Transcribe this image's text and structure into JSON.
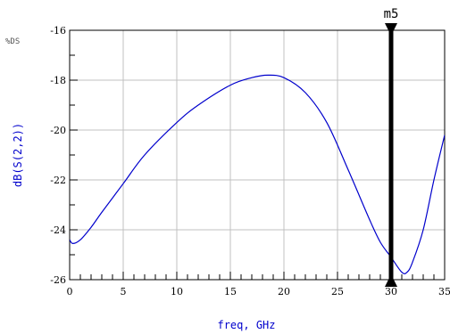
{
  "corner_label": "%DS",
  "chart_data": {
    "type": "line",
    "xlabel": "freq, GHz",
    "ylabel": "dB(S(2,2))",
    "xlim": [
      0,
      35
    ],
    "ylim": [
      -26,
      -16
    ],
    "x_major_ticks": [
      0,
      5,
      10,
      15,
      20,
      25,
      30,
      35
    ],
    "x_tick_labels": [
      "0",
      "5",
      "10",
      "15",
      "20",
      "25",
      "30",
      "35"
    ],
    "y_major_ticks": [
      -26,
      -24,
      -22,
      -20,
      -18,
      -16
    ],
    "y_tick_labels": [
      "-26",
      "-24",
      "-22",
      "-20",
      "-18",
      "-16"
    ],
    "grid": true,
    "colors": {
      "series": "#0000cc",
      "ylabel": "#0000cc",
      "xlabel": "#0000cc",
      "grid": "#c0c0c0",
      "marker": "#000000"
    },
    "series": [
      {
        "values": [
          {
            "x": 0,
            "y": -24.4
          },
          {
            "x": 0.3,
            "y": -24.55
          },
          {
            "x": 1,
            "y": -24.4
          },
          {
            "x": 2,
            "y": -23.9
          },
          {
            "x": 3,
            "y": -23.3
          },
          {
            "x": 5,
            "y": -22.15
          },
          {
            "x": 7,
            "y": -21.0
          },
          {
            "x": 10,
            "y": -19.7
          },
          {
            "x": 12,
            "y": -19.0
          },
          {
            "x": 15,
            "y": -18.2
          },
          {
            "x": 17,
            "y": -17.9
          },
          {
            "x": 18.5,
            "y": -17.8
          },
          {
            "x": 20,
            "y": -17.9
          },
          {
            "x": 22,
            "y": -18.5
          },
          {
            "x": 24,
            "y": -19.7
          },
          {
            "x": 26,
            "y": -21.6
          },
          {
            "x": 28,
            "y": -23.6
          },
          {
            "x": 29,
            "y": -24.5
          },
          {
            "x": 30,
            "y": -25.1
          },
          {
            "x": 31,
            "y": -25.7
          },
          {
            "x": 31.5,
            "y": -25.7
          },
          {
            "x": 32,
            "y": -25.3
          },
          {
            "x": 33,
            "y": -24.0
          },
          {
            "x": 34,
            "y": -22.0
          },
          {
            "x": 35,
            "y": -20.2
          }
        ]
      }
    ],
    "markers": [
      {
        "name": "m5",
        "x": 30
      }
    ]
  }
}
